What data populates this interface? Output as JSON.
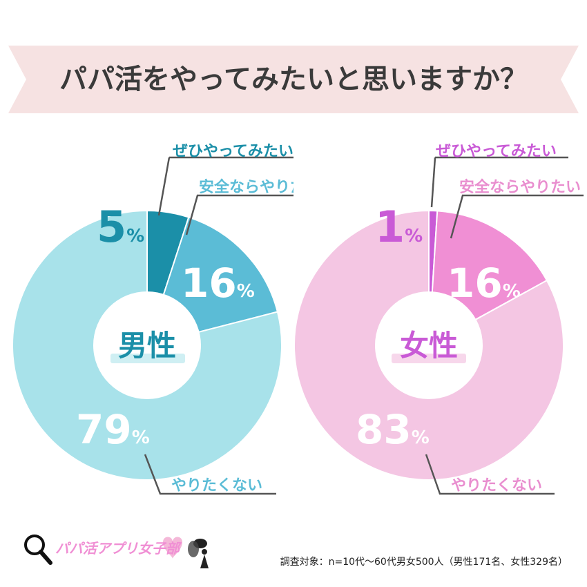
{
  "title": "パパ活をやってみたいと思いますか？",
  "chart_data": [
    {
      "type": "pie",
      "center_label": "男性",
      "categories": [
        "ぜひやってみたい",
        "安全ならやりたい",
        "やりたくない"
      ],
      "values": [
        5,
        16,
        79
      ],
      "colors": [
        "#1b8fa8",
        "#5bbcd6",
        "#a8e2ea"
      ],
      "label_color": "#1b8fa8",
      "text_color": "#5bbcd6"
    },
    {
      "type": "pie",
      "center_label": "女性",
      "categories": [
        "ぜひやってみたい",
        "安全ならやりたい",
        "やりたくない"
      ],
      "values": [
        1,
        16,
        83
      ],
      "colors": [
        "#c95ad6",
        "#f08fd4",
        "#f4c6e3"
      ],
      "label_color": "#c95ad6",
      "text_color": "#e98ecf"
    }
  ],
  "colors": {
    "banner_bg": "#f6e2e2",
    "title_text": "#3a3a3a"
  },
  "footer": {
    "logo_text": "パパ活アプリ女子部",
    "survey_note": "調査対象：n=10代〜60代男女500人（男性171名、女性329名）"
  },
  "icons": [
    "magnifier-icon",
    "fairy-icon"
  ]
}
